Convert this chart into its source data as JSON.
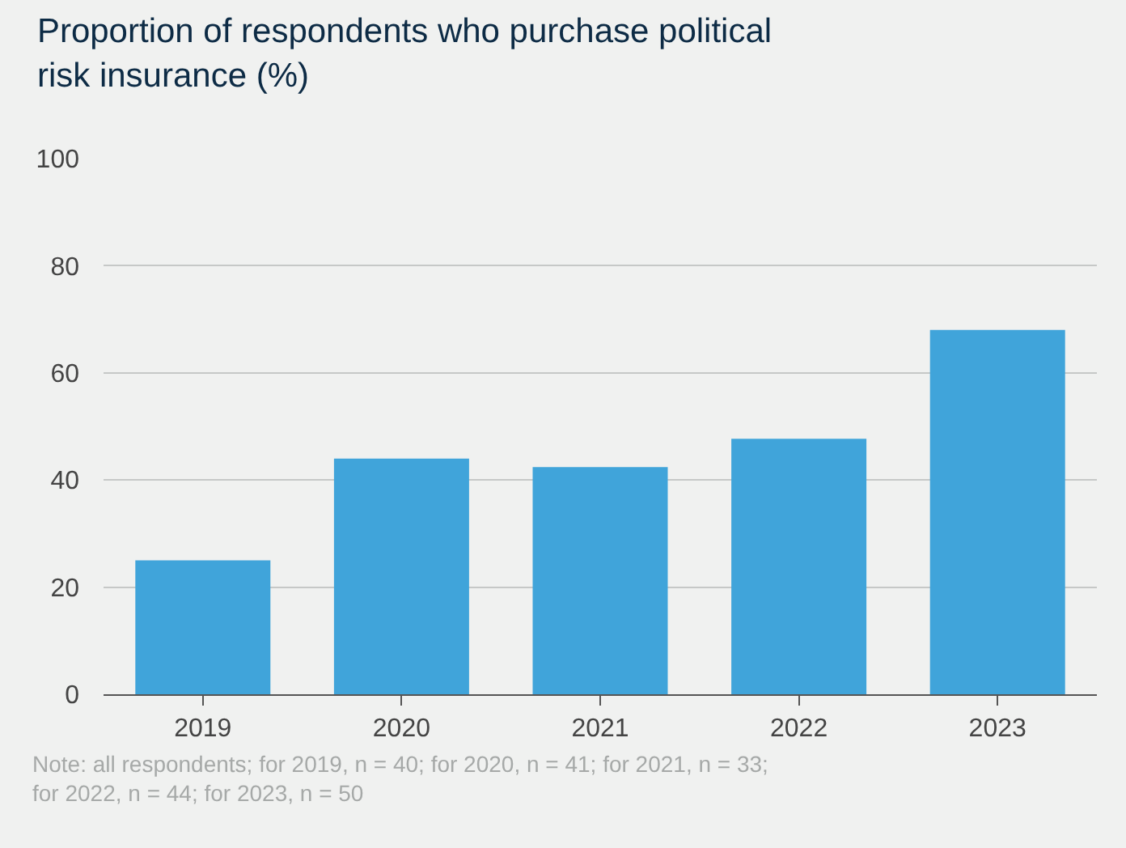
{
  "chart_data": {
    "type": "bar",
    "title": "Proportion of respondents who purchase political risk insurance (%)",
    "categories": [
      "2019",
      "2020",
      "2021",
      "2022",
      "2023"
    ],
    "values": [
      25,
      44,
      42.4,
      47.7,
      68
    ],
    "color": "#40a4da",
    "ylim": [
      0,
      100
    ],
    "yticks": [
      0,
      20,
      40,
      60,
      80,
      100
    ],
    "grid": "y",
    "annotations": [
      "Note: all respondents; for 2019, n = 40; for 2020, n = 41; for 2021, n = 33; for 2022, n = 44; for 2023, n = 50"
    ]
  }
}
